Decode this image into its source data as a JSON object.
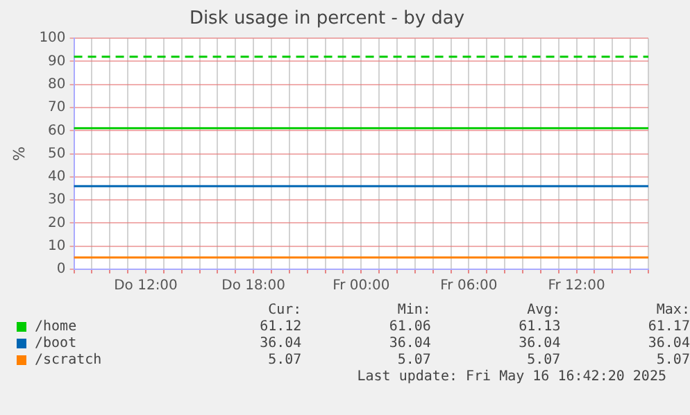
{
  "chart_data": {
    "type": "line",
    "title": "Disk usage in percent - by day",
    "ylabel": "%",
    "categories": [
      null,
      null,
      null,
      null,
      "Do 12:00",
      null,
      null,
      null,
      null,
      null,
      "Do 18:00",
      null,
      null,
      null,
      null,
      null,
      "Fr 00:00",
      null,
      null,
      null,
      null,
      null,
      "Fr 06:00",
      null,
      null,
      null,
      null,
      null,
      "Fr 12:00",
      null,
      null,
      null,
      null
    ],
    "series": [
      {
        "name": "/home",
        "color": "#00cc00",
        "values": [
          61.1,
          61.1,
          61.1,
          61.1,
          61.1,
          61.1,
          61.1,
          61.1,
          61.1,
          61.1,
          61.1,
          61.1,
          61.1,
          61.1,
          61.1,
          61.1,
          61.1,
          61.1,
          61.1,
          61.1,
          61.1,
          61.1,
          61.1,
          61.1,
          61.1,
          61.1,
          61.1,
          61.1,
          61.1,
          61.1,
          61.1,
          61.1,
          61.1
        ]
      },
      {
        "name": "/boot",
        "color": "#0066b3",
        "values": [
          36,
          36,
          36,
          36,
          36,
          36,
          36,
          36,
          36,
          36,
          36,
          36,
          36,
          36,
          36,
          36,
          36,
          36,
          36,
          36,
          36,
          36,
          36,
          36,
          36,
          36,
          36,
          36,
          36,
          36,
          36,
          36,
          36
        ]
      },
      {
        "name": "/scratch",
        "color": "#ff8000",
        "values": [
          5.1,
          5.1,
          5.1,
          5.1,
          5.1,
          5.1,
          5.1,
          5.1,
          5.1,
          5.1,
          5.1,
          5.1,
          5.1,
          5.1,
          5.1,
          5.1,
          5.1,
          5.1,
          5.1,
          5.1,
          5.1,
          5.1,
          5.1,
          5.1,
          5.1,
          5.1,
          5.1,
          5.1,
          5.1,
          5.1,
          5.1,
          5.1,
          5.1
        ]
      }
    ],
    "ylim": [
      0,
      100
    ],
    "yticks": [
      0,
      10,
      20,
      30,
      40,
      50,
      60,
      70,
      80,
      90,
      100
    ],
    "grid": true,
    "legend": "bottom",
    "marker": "none",
    "line_style": "solid",
    "ref_lines": [
      {
        "axis": "y",
        "value": 92,
        "color": "#00cc00",
        "line_style": "dashed"
      }
    ],
    "annotations": [
      "Cur:",
      "Min:",
      "Avg:",
      "Max:",
      "61.12",
      "61.06",
      "61.13",
      "61.17",
      "36.04",
      "36.04",
      "36.04",
      "36.04",
      "5.07",
      "5.07",
      "5.07",
      "5.07",
      "Last update: Fri May 16 16:42:20 2025"
    ]
  }
}
